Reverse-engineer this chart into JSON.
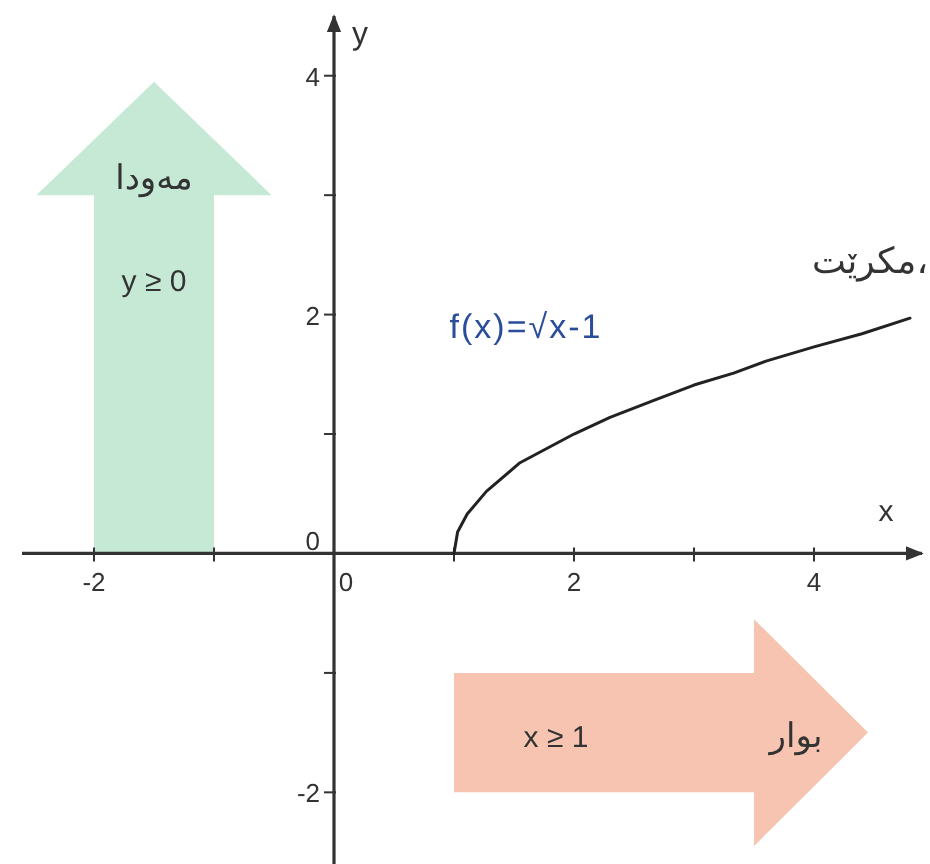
{
  "chart_data": {
    "type": "line",
    "xlabel": "x",
    "ylabel": "y",
    "x": [
      1,
      1.03,
      1.11,
      1.27,
      1.55,
      2,
      2.3,
      2.66,
      3,
      3.33,
      3.6,
      4,
      4.4,
      4.8
    ],
    "series": [
      {
        "name": "f(x)=√x-1",
        "color": "#222222",
        "values": [
          0,
          0.18,
          0.33,
          0.52,
          0.76,
          1.0,
          1.14,
          1.28,
          1.41,
          1.51,
          1.61,
          1.73,
          1.84,
          1.97
        ]
      }
    ],
    "xlim": [
      -2.6,
      4.9
    ],
    "ylim": [
      -2.6,
      4.5
    ],
    "xticks": [
      -2,
      {
        "value": -1,
        "label": null
      },
      0,
      {
        "value": 1,
        "label": null
      },
      2,
      {
        "value": 3,
        "label": null
      },
      4
    ],
    "yticks": [
      -2,
      {
        "value": -1,
        "label": null
      },
      0,
      {
        "value": 1,
        "label": null
      },
      2,
      {
        "value": 3,
        "label": null
      },
      4
    ],
    "annotations": [
      "مەودا",
      "y ≥ 0",
      "x ≥ 1",
      "بوار",
      "مكرێت،"
    ]
  }
}
